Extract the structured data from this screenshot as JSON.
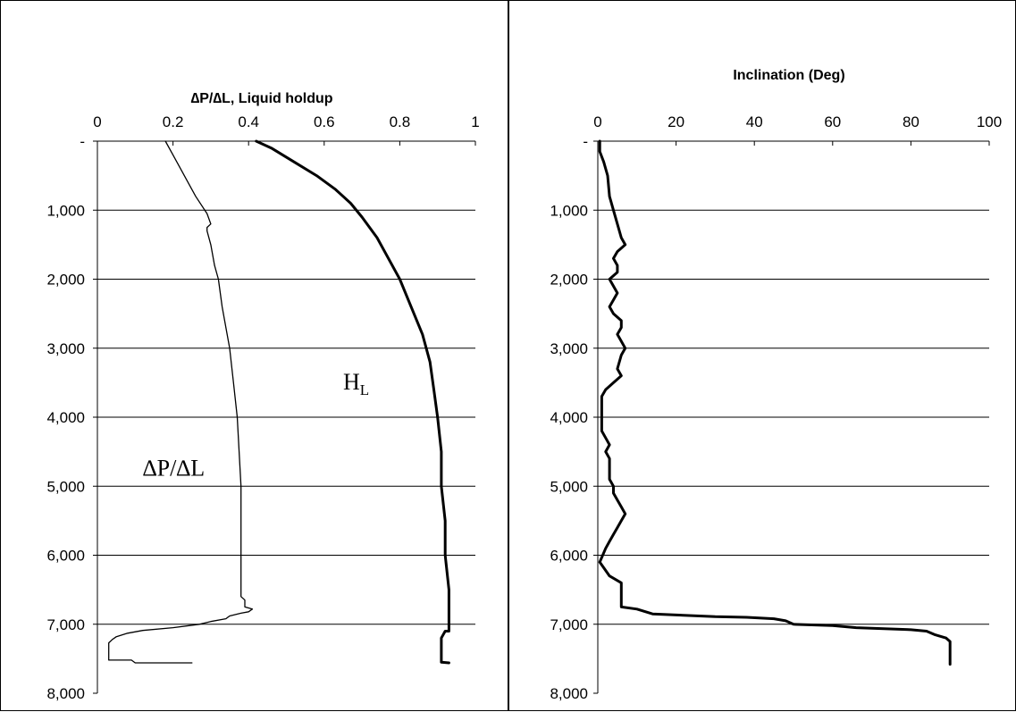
{
  "chart_data": [
    {
      "type": "line",
      "title": "∆P/∆L, Liquid holdup",
      "x_ticks": [
        "0",
        "0.2",
        "0.4",
        "0.6",
        "0.8",
        "1"
      ],
      "xlim": [
        0,
        1
      ],
      "y_ticks": [
        "-",
        "1,000",
        "2,000",
        "3,000",
        "4,000",
        "5,000",
        "6,000",
        "7,000",
        "8,000"
      ],
      "ylim": [
        0,
        8000
      ],
      "y_inverted": true,
      "grid": "horizontal",
      "annotations": [
        {
          "id": "hl",
          "text": "H",
          "sub": "L",
          "x": 0.65,
          "y": 3600
        },
        {
          "id": "dpdl",
          "text": "∆P/∆L",
          "x": 0.12,
          "y": 4850
        }
      ],
      "series": [
        {
          "id": "dpdl",
          "style": "thin-step",
          "points": [
            [
              0.18,
              0
            ],
            [
              0.2,
              200
            ],
            [
              0.22,
              400
            ],
            [
              0.24,
              600
            ],
            [
              0.26,
              800
            ],
            [
              0.29,
              1050
            ],
            [
              0.3,
              1200
            ],
            [
              0.29,
              1250
            ],
            [
              0.29,
              1300
            ],
            [
              0.3,
              1500
            ],
            [
              0.31,
              1800
            ],
            [
              0.32,
              2000
            ],
            [
              0.33,
              2400
            ],
            [
              0.34,
              2700
            ],
            [
              0.35,
              3000
            ],
            [
              0.36,
              3500
            ],
            [
              0.37,
              4000
            ],
            [
              0.38,
              5000
            ],
            [
              0.38,
              5800
            ],
            [
              0.38,
              6300
            ],
            [
              0.38,
              6600
            ],
            [
              0.39,
              6650
            ],
            [
              0.39,
              6750
            ],
            [
              0.41,
              6780
            ],
            [
              0.4,
              6820
            ],
            [
              0.38,
              6840
            ],
            [
              0.35,
              6880
            ],
            [
              0.34,
              6920
            ],
            [
              0.3,
              6960
            ],
            [
              0.27,
              7000
            ],
            [
              0.2,
              7050
            ],
            [
              0.12,
              7090
            ],
            [
              0.08,
              7130
            ],
            [
              0.05,
              7180
            ],
            [
              0.04,
              7220
            ],
            [
              0.03,
              7270
            ],
            [
              0.03,
              7500
            ],
            [
              0.03,
              7520
            ],
            [
              0.09,
              7520
            ],
            [
              0.1,
              7560
            ],
            [
              0.25,
              7560
            ]
          ]
        },
        {
          "id": "holdup",
          "style": "thick",
          "points": [
            [
              0.42,
              0
            ],
            [
              0.46,
              100
            ],
            [
              0.52,
              300
            ],
            [
              0.58,
              500
            ],
            [
              0.63,
              700
            ],
            [
              0.67,
              900
            ],
            [
              0.7,
              1100
            ],
            [
              0.74,
              1400
            ],
            [
              0.77,
              1700
            ],
            [
              0.8,
              2000
            ],
            [
              0.83,
              2400
            ],
            [
              0.86,
              2800
            ],
            [
              0.88,
              3200
            ],
            [
              0.89,
              3600
            ],
            [
              0.9,
              4000
            ],
            [
              0.91,
              4500
            ],
            [
              0.91,
              5000
            ],
            [
              0.92,
              5500
            ],
            [
              0.92,
              6000
            ],
            [
              0.93,
              6500
            ],
            [
              0.93,
              7100
            ],
            [
              0.92,
              7100
            ],
            [
              0.91,
              7200
            ],
            [
              0.91,
              7400
            ],
            [
              0.91,
              7500
            ],
            [
              0.91,
              7550
            ],
            [
              0.93,
              7560
            ]
          ]
        }
      ]
    },
    {
      "type": "line",
      "title": "Inclination (Deg)",
      "x_ticks": [
        "0",
        "20",
        "40",
        "60",
        "80",
        "100"
      ],
      "xlim": [
        0,
        100
      ],
      "y_ticks": [
        "-",
        "1,000",
        "2,000",
        "3,000",
        "4,000",
        "5,000",
        "6,000",
        "7,000",
        "8,000"
      ],
      "ylim": [
        0,
        8000
      ],
      "y_inverted": true,
      "grid": "horizontal",
      "series": [
        {
          "id": "inclination",
          "style": "thick",
          "points": [
            [
              0.5,
              0
            ],
            [
              0.5,
              150
            ],
            [
              1.5,
              300
            ],
            [
              2.5,
              500
            ],
            [
              3,
              800
            ],
            [
              4,
              1000
            ],
            [
              5,
              1200
            ],
            [
              6,
              1400
            ],
            [
              7,
              1500
            ],
            [
              5,
              1600
            ],
            [
              4,
              1700
            ],
            [
              5,
              1800
            ],
            [
              5,
              1900
            ],
            [
              3,
              2000
            ],
            [
              4,
              2100
            ],
            [
              5,
              2200
            ],
            [
              4,
              2300
            ],
            [
              3,
              2400
            ],
            [
              4,
              2500
            ],
            [
              6,
              2600
            ],
            [
              6,
              2700
            ],
            [
              5,
              2800
            ],
            [
              6,
              2900
            ],
            [
              7,
              3000
            ],
            [
              6,
              3100
            ],
            [
              5,
              3300
            ],
            [
              6,
              3400
            ],
            [
              4,
              3500
            ],
            [
              2,
              3600
            ],
            [
              1,
              3700
            ],
            [
              1,
              3900
            ],
            [
              1,
              4000
            ],
            [
              1,
              4200
            ],
            [
              2,
              4300
            ],
            [
              3,
              4400
            ],
            [
              2,
              4500
            ],
            [
              3,
              4600
            ],
            [
              3,
              4700
            ],
            [
              3,
              4900
            ],
            [
              4,
              5000
            ],
            [
              4,
              5100
            ],
            [
              5,
              5200
            ],
            [
              6,
              5300
            ],
            [
              7,
              5400
            ],
            [
              6,
              5500
            ],
            [
              5,
              5600
            ],
            [
              4,
              5700
            ],
            [
              3,
              5800
            ],
            [
              2,
              5900
            ],
            [
              0.5,
              6100
            ],
            [
              3,
              6300
            ],
            [
              6,
              6400
            ],
            [
              6,
              6600
            ],
            [
              6,
              6750
            ],
            [
              10,
              6780
            ],
            [
              14,
              6850
            ],
            [
              30,
              6890
            ],
            [
              38,
              6900
            ],
            [
              45,
              6920
            ],
            [
              48,
              6950
            ],
            [
              50,
              7000
            ],
            [
              60,
              7020
            ],
            [
              66,
              7050
            ],
            [
              80,
              7080
            ],
            [
              84,
              7100
            ],
            [
              86,
              7150
            ],
            [
              89,
              7200
            ],
            [
              90,
              7250
            ],
            [
              90,
              7400
            ],
            [
              90,
              7580
            ]
          ]
        }
      ]
    }
  ]
}
